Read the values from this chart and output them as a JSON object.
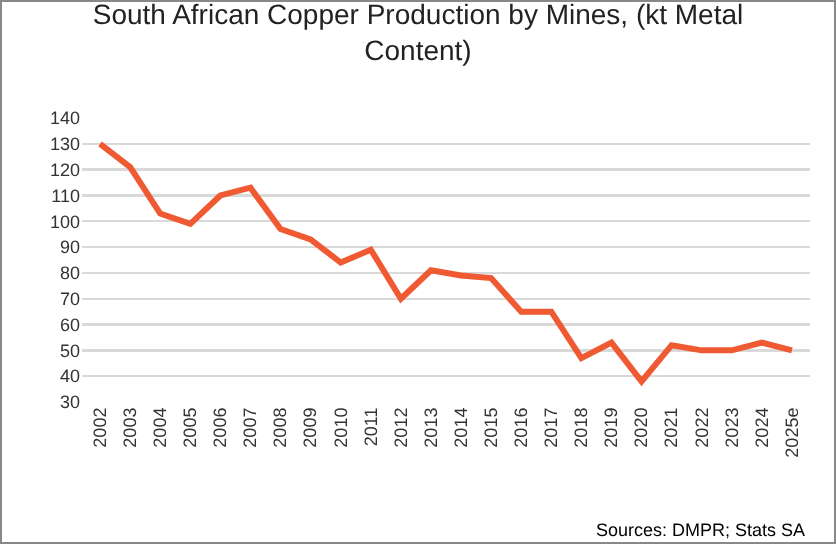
{
  "chart_data": {
    "type": "line",
    "title": "South African Copper Production by Mines, (kt Metal Content)",
    "categories": [
      "2002",
      "2003",
      "2004",
      "2005",
      "2006",
      "2007",
      "2008",
      "2009",
      "2010",
      "2011",
      "2012",
      "2013",
      "2014",
      "2015",
      "2016",
      "2017",
      "2018",
      "2019",
      "2020",
      "2021",
      "2022",
      "2023",
      "2024",
      "2025e"
    ],
    "series": [
      {
        "color": "#f05a32",
        "values": [
          130,
          121,
          103,
          99,
          110,
          113,
          97,
          93,
          84,
          89,
          70,
          81,
          79,
          78,
          65,
          65,
          47,
          53,
          38,
          52,
          50,
          50,
          53,
          50
        ]
      }
    ],
    "ylim": [
      30,
      140
    ],
    "yticks": [
      30,
      40,
      50,
      60,
      70,
      80,
      90,
      100,
      110,
      120,
      130,
      140
    ],
    "grid": "y",
    "marker": "none",
    "line_style": "solid",
    "annotations": [
      "Sources: DMPR; Stats SA"
    ]
  }
}
